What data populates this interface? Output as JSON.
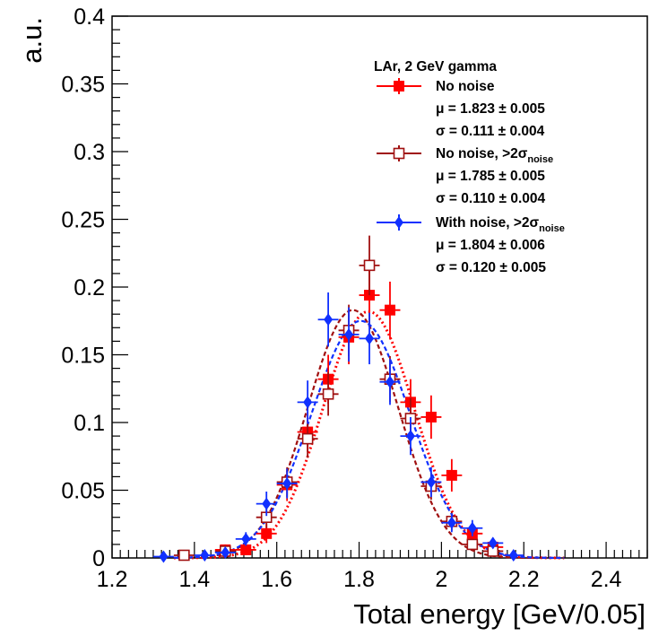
{
  "chart_data": {
    "type": "scatter",
    "title": "",
    "xlabel": "Total energy [GeV/0.05]",
    "ylabel": "a.u.",
    "xlim": [
      1.2,
      2.5
    ],
    "ylim": [
      0,
      0.4
    ],
    "x_ticks": [
      "1.2",
      "1.4",
      "1.6",
      "1.8",
      "2",
      "2.2",
      "2.4"
    ],
    "y_ticks": [
      "0",
      "0.05",
      "0.1",
      "0.15",
      "0.2",
      "0.25",
      "0.3",
      "0.35",
      "0.4"
    ],
    "grid": false,
    "legend_position": "top-right",
    "legend_title": "LAr, 2 GeV gamma",
    "series": [
      {
        "name": "No noise",
        "marker": "filled-square",
        "color": "#ff0000",
        "stat_mu": "μ = 1.823 ± 0.005",
        "stat_sigma": "σ = 0.111 ± 0.004",
        "fit": {
          "mu": 1.823,
          "sigma": 0.111,
          "amp": 0.182,
          "style": "dotted"
        },
        "points": [
          {
            "x": 1.475,
            "y": 0.006,
            "err": 0.004
          },
          {
            "x": 1.525,
            "y": 0.006,
            "err": 0.004
          },
          {
            "x": 1.575,
            "y": 0.018,
            "err": 0.007
          },
          {
            "x": 1.625,
            "y": 0.054,
            "err": 0.012
          },
          {
            "x": 1.675,
            "y": 0.093,
            "err": 0.015
          },
          {
            "x": 1.725,
            "y": 0.132,
            "err": 0.018
          },
          {
            "x": 1.775,
            "y": 0.163,
            "err": 0.02
          },
          {
            "x": 1.825,
            "y": 0.194,
            "err": 0.022
          },
          {
            "x": 1.875,
            "y": 0.183,
            "err": 0.021
          },
          {
            "x": 1.925,
            "y": 0.115,
            "err": 0.017
          },
          {
            "x": 1.975,
            "y": 0.104,
            "err": 0.016
          },
          {
            "x": 2.025,
            "y": 0.061,
            "err": 0.012
          },
          {
            "x": 2.075,
            "y": 0.018,
            "err": 0.007
          },
          {
            "x": 2.125,
            "y": 0.008,
            "err": 0.004
          }
        ]
      },
      {
        "name": "No noise, >2σ",
        "name_sub": "noise",
        "marker": "open-square",
        "color": "#a01010",
        "stat_mu": "μ = 1.785 ± 0.005",
        "stat_sigma": "σ = 0.110 ± 0.004",
        "fit": {
          "mu": 1.785,
          "sigma": 0.11,
          "amp": 0.183,
          "style": "dashed"
        },
        "points": [
          {
            "x": 1.375,
            "y": 0.002,
            "err": 0.002
          },
          {
            "x": 1.475,
            "y": 0.005,
            "err": 0.003
          },
          {
            "x": 1.575,
            "y": 0.03,
            "err": 0.008
          },
          {
            "x": 1.625,
            "y": 0.056,
            "err": 0.011
          },
          {
            "x": 1.675,
            "y": 0.088,
            "err": 0.014
          },
          {
            "x": 1.725,
            "y": 0.121,
            "err": 0.016
          },
          {
            "x": 1.775,
            "y": 0.168,
            "err": 0.019
          },
          {
            "x": 1.825,
            "y": 0.216,
            "err": 0.022
          },
          {
            "x": 1.875,
            "y": 0.132,
            "err": 0.017
          },
          {
            "x": 1.925,
            "y": 0.103,
            "err": 0.015
          },
          {
            "x": 1.975,
            "y": 0.053,
            "err": 0.01
          },
          {
            "x": 2.025,
            "y": 0.027,
            "err": 0.007
          },
          {
            "x": 2.075,
            "y": 0.01,
            "err": 0.004
          },
          {
            "x": 2.125,
            "y": 0.005,
            "err": 0.003
          }
        ]
      },
      {
        "name": "With noise, >2σ",
        "name_sub": "noise",
        "marker": "filled-diamond",
        "color": "#1030ff",
        "stat_mu": "μ = 1.804 ± 0.006",
        "stat_sigma": "σ = 0.120 ± 0.005",
        "fit": {
          "mu": 1.804,
          "sigma": 0.12,
          "amp": 0.175,
          "style": "dashed"
        },
        "points": [
          {
            "x": 1.325,
            "y": 0.001,
            "err": 0.002
          },
          {
            "x": 1.425,
            "y": 0.002,
            "err": 0.002
          },
          {
            "x": 1.475,
            "y": 0.004,
            "err": 0.003
          },
          {
            "x": 1.525,
            "y": 0.014,
            "err": 0.005
          },
          {
            "x": 1.575,
            "y": 0.04,
            "err": 0.009
          },
          {
            "x": 1.625,
            "y": 0.055,
            "err": 0.011
          },
          {
            "x": 1.675,
            "y": 0.115,
            "err": 0.016
          },
          {
            "x": 1.725,
            "y": 0.176,
            "err": 0.02
          },
          {
            "x": 1.775,
            "y": 0.165,
            "err": 0.02
          },
          {
            "x": 1.825,
            "y": 0.162,
            "err": 0.019
          },
          {
            "x": 1.875,
            "y": 0.13,
            "err": 0.017
          },
          {
            "x": 1.925,
            "y": 0.09,
            "err": 0.014
          },
          {
            "x": 1.975,
            "y": 0.056,
            "err": 0.011
          },
          {
            "x": 2.025,
            "y": 0.026,
            "err": 0.007
          },
          {
            "x": 2.075,
            "y": 0.022,
            "err": 0.006
          },
          {
            "x": 2.125,
            "y": 0.011,
            "err": 0.004
          },
          {
            "x": 2.175,
            "y": 0.002,
            "err": 0.002
          }
        ]
      }
    ]
  }
}
